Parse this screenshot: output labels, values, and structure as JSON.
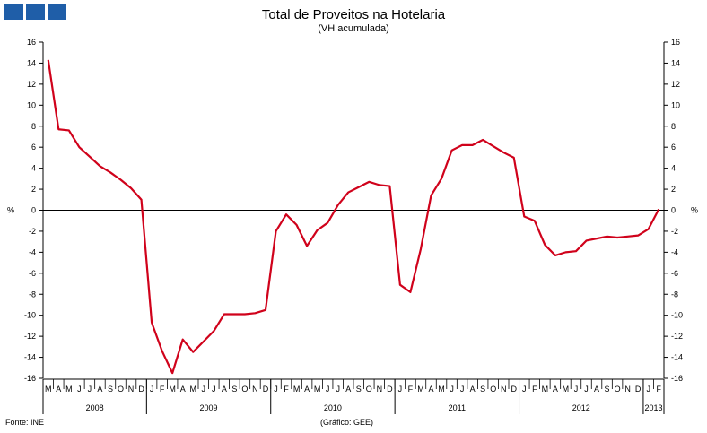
{
  "header": {
    "title": "Total de Proveitos na Hotelaria",
    "subtitle": "(VH acumulada)"
  },
  "footer": {
    "source": "Fonte: INE",
    "credit": "(Gráfico: GEE)"
  },
  "logo": {
    "icon": "gee-logo-icon",
    "color": "#1f5ea8"
  },
  "chart_data": {
    "type": "line",
    "title": "Total de Proveitos na Hotelaria",
    "subtitle": "(VH acumulada)",
    "ylabel_left": "%",
    "ylabel_right": "%",
    "ylim": [
      -16,
      16
    ],
    "yticks": [
      16,
      14,
      12,
      10,
      8,
      6,
      4,
      2,
      0,
      -2,
      -4,
      -6,
      -8,
      -10,
      -12,
      -14,
      -16
    ],
    "grid": false,
    "line_color": "#d0021b",
    "month_labels": [
      "M",
      "A",
      "M",
      "J",
      "J",
      "A",
      "S",
      "O",
      "N",
      "D",
      "J",
      "F",
      "M",
      "A",
      "M",
      "J",
      "J",
      "A",
      "S",
      "O",
      "N",
      "D",
      "J",
      "F",
      "M",
      "A",
      "M",
      "J",
      "J",
      "A",
      "S",
      "O",
      "N",
      "D",
      "J",
      "F",
      "M",
      "A",
      "M",
      "J",
      "J",
      "A",
      "S",
      "O",
      "N",
      "D",
      "J",
      "F",
      "M",
      "A",
      "M",
      "J",
      "J",
      "A",
      "S",
      "O",
      "N",
      "D",
      "J",
      "F"
    ],
    "year_groups": [
      {
        "label": "2008",
        "months": 10
      },
      {
        "label": "2009",
        "months": 12
      },
      {
        "label": "2010",
        "months": 12
      },
      {
        "label": "2011",
        "months": 12
      },
      {
        "label": "2012",
        "months": 12
      },
      {
        "label": "2013",
        "months": 2
      }
    ],
    "series": [
      {
        "values": [
          14.3,
          7.7,
          7.6,
          6.0,
          5.1,
          4.2,
          3.6,
          2.9,
          2.1,
          1.0,
          -10.7,
          -13.4,
          -15.5,
          -12.3,
          -13.5,
          -12.5,
          -11.5,
          -9.9,
          -9.9,
          -9.9,
          -9.8,
          -9.5,
          -2.0,
          -0.4,
          -1.4,
          -3.4,
          -1.9,
          -1.2,
          0.5,
          1.7,
          2.2,
          2.7,
          2.4,
          2.3,
          -7.1,
          -7.8,
          -3.7,
          1.4,
          3.0,
          5.7,
          6.2,
          6.2,
          6.7,
          6.1,
          5.5,
          5.0,
          -0.6,
          -1.0,
          -3.3,
          -4.3,
          -4.0,
          -3.9,
          -2.9,
          -2.7,
          -2.5,
          -2.6,
          -2.5,
          -2.4,
          -1.8,
          0.1
        ]
      }
    ]
  }
}
